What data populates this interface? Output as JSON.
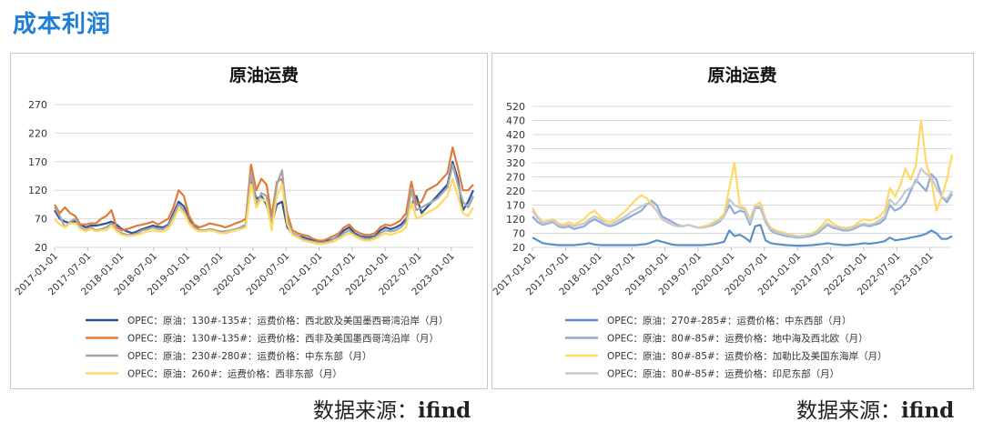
{
  "page": {
    "heading": "成本利润",
    "heading_color": "#1f7fd6",
    "source_label": "数据来源：",
    "source_value": "ifind"
  },
  "chart_data": [
    {
      "type": "line",
      "title": "原油运费",
      "xlabel": "",
      "ylabel": "",
      "y_ticks": [
        20,
        70,
        120,
        170,
        220,
        270
      ],
      "ylim": [
        20,
        270
      ],
      "grid": true,
      "legend_position": "bottom",
      "x_ticks": [
        "2017-01-01",
        "2017-07-01",
        "2018-01-01",
        "2018-07-01",
        "2019-01-01",
        "2019-07-01",
        "2020-01-01",
        "2020-07-01",
        "2021-01-01",
        "2021-07-01",
        "2022-01-01",
        "2022-07-01",
        "2023-01-01"
      ],
      "x_start": "2017-01",
      "x_end": "2023-05",
      "series": [
        {
          "name": "OPEC：原油：130#-135#：运费价格：西北欧及美国墨西哥湾沿岸（月）",
          "color": "#2f5597",
          "values": [
            85,
            70,
            65,
            62,
            66,
            60,
            55,
            58,
            58,
            60,
            62,
            65,
            60,
            52,
            48,
            45,
            48,
            52,
            55,
            58,
            56,
            55,
            60,
            80,
            100,
            92,
            70,
            58,
            50,
            48,
            52,
            50,
            48,
            45,
            48,
            50,
            55,
            60,
            140,
            105,
            110,
            95,
            60,
            95,
            100,
            55,
            45,
            40,
            38,
            35,
            32,
            30,
            30,
            32,
            35,
            40,
            50,
            55,
            45,
            40,
            38,
            38,
            40,
            50,
            55,
            52,
            55,
            60,
            70,
            95,
            110,
            80,
            90,
            100,
            110,
            120,
            130,
            170,
            140,
            85,
            100,
            120
          ]
        },
        {
          "name": "OPEC：原油：130#-135#：运费价格：西非及美国墨西哥湾沿岸（月）",
          "color": "#e07b39",
          "values": [
            95,
            80,
            90,
            80,
            75,
            60,
            60,
            62,
            62,
            70,
            75,
            85,
            55,
            50,
            52,
            55,
            58,
            60,
            62,
            65,
            60,
            65,
            70,
            90,
            120,
            110,
            75,
            60,
            55,
            58,
            62,
            60,
            58,
            55,
            58,
            62,
            65,
            70,
            165,
            120,
            140,
            130,
            75,
            135,
            140,
            80,
            50,
            45,
            42,
            40,
            35,
            32,
            32,
            36,
            40,
            45,
            55,
            60,
            50,
            45,
            42,
            42,
            45,
            55,
            60,
            58,
            62,
            68,
            80,
            135,
            95,
            100,
            120,
            125,
            130,
            140,
            150,
            195,
            160,
            120,
            120,
            130
          ]
        },
        {
          "name": "OPEC：原油：230#-280#：运费价格：中东东部（月）",
          "color": "#a6a6a6",
          "values": [
            90,
            75,
            55,
            65,
            70,
            55,
            50,
            55,
            50,
            52,
            55,
            62,
            50,
            45,
            42,
            42,
            45,
            50,
            52,
            55,
            52,
            52,
            58,
            75,
            95,
            85,
            65,
            55,
            50,
            50,
            52,
            50,
            48,
            48,
            50,
            52,
            55,
            60,
            150,
            95,
            115,
            110,
            60,
            130,
            155,
            70,
            45,
            40,
            35,
            32,
            30,
            28,
            28,
            30,
            35,
            38,
            45,
            50,
            42,
            38,
            35,
            35,
            38,
            45,
            50,
            48,
            50,
            55,
            65,
            120,
            85,
            90,
            95,
            100,
            105,
            115,
            125,
            165,
            130,
            100,
            90,
            110
          ]
        },
        {
          "name": "OPEC：原油：260#：运费价格：西非东部（月）",
          "color": "#ffd966",
          "values": [
            70,
            60,
            55,
            62,
            62,
            52,
            48,
            52,
            48,
            50,
            50,
            58,
            48,
            42,
            40,
            40,
            42,
            45,
            48,
            50,
            48,
            48,
            52,
            68,
            88,
            80,
            62,
            52,
            48,
            48,
            50,
            48,
            45,
            45,
            48,
            50,
            52,
            55,
            130,
            90,
            105,
            100,
            50,
            110,
            130,
            60,
            42,
            38,
            32,
            30,
            28,
            26,
            26,
            28,
            30,
            35,
            40,
            45,
            40,
            35,
            32,
            32,
            35,
            40,
            45,
            42,
            45,
            48,
            55,
            100,
            70,
            75,
            80,
            85,
            90,
            100,
            110,
            140,
            110,
            80,
            75,
            90
          ]
        }
      ]
    },
    {
      "type": "line",
      "title": "原油运费",
      "xlabel": "",
      "ylabel": "",
      "y_ticks": [
        20,
        70,
        120,
        170,
        220,
        270,
        320,
        370,
        420,
        470,
        520
      ],
      "ylim": [
        20,
        520
      ],
      "grid": true,
      "legend_position": "bottom",
      "x_ticks": [
        "2017-01-01",
        "2017-07-01",
        "2018-01-01",
        "2018-07-01",
        "2019-01-01",
        "2019-07-01",
        "2020-01-01",
        "2020-07-01",
        "2021-01-01",
        "2021-07-01",
        "2022-01-01",
        "2022-07-01",
        "2023-01-01"
      ],
      "x_start": "2017-01",
      "x_end": "2023-05",
      "series": [
        {
          "name": "OPEC：原油：270#-285#：运费价格：中东西部（月）",
          "color": "#5b8fc7",
          "values": [
            55,
            45,
            35,
            32,
            30,
            28,
            28,
            28,
            28,
            30,
            32,
            35,
            30,
            28,
            28,
            28,
            28,
            28,
            28,
            28,
            28,
            30,
            32,
            38,
            45,
            40,
            35,
            30,
            28,
            28,
            28,
            28,
            28,
            28,
            30,
            32,
            35,
            40,
            80,
            60,
            65,
            55,
            40,
            95,
            100,
            45,
            35,
            32,
            30,
            28,
            27,
            26,
            26,
            27,
            28,
            30,
            32,
            35,
            32,
            30,
            28,
            28,
            30,
            32,
            35,
            33,
            35,
            38,
            42,
            55,
            45,
            48,
            50,
            55,
            58,
            62,
            68,
            80,
            70,
            50,
            50,
            60
          ]
        },
        {
          "name": "OPEC：原油：80#-85#：运费价格：地中海及西北欧（月）",
          "color": "#8eaadb",
          "values": [
            130,
            110,
            100,
            105,
            110,
            95,
            90,
            95,
            85,
            90,
            95,
            110,
            120,
            110,
            100,
            95,
            100,
            110,
            120,
            130,
            140,
            150,
            170,
            185,
            170,
            130,
            120,
            110,
            100,
            95,
            100,
            95,
            90,
            90,
            95,
            100,
            110,
            130,
            170,
            140,
            150,
            145,
            100,
            160,
            160,
            110,
            80,
            70,
            65,
            60,
            58,
            55,
            55,
            58,
            62,
            70,
            85,
            100,
            90,
            85,
            80,
            80,
            85,
            95,
            100,
            95,
            100,
            105,
            120,
            170,
            150,
            160,
            180,
            220,
            260,
            240,
            220,
            280,
            260,
            200,
            180,
            210
          ]
        },
        {
          "name": "OPEC：原油：80#-85#：运费价格：加勒比及美国东海岸（月）",
          "color": "#ffd966",
          "values": [
            160,
            130,
            110,
            115,
            120,
            105,
            100,
            110,
            100,
            110,
            120,
            140,
            150,
            130,
            115,
            110,
            120,
            135,
            150,
            170,
            190,
            205,
            195,
            175,
            150,
            120,
            110,
            100,
            95,
            95,
            100,
            95,
            90,
            95,
            100,
            110,
            120,
            140,
            230,
            320,
            170,
            160,
            120,
            170,
            180,
            120,
            90,
            80,
            75,
            70,
            65,
            60,
            60,
            65,
            70,
            80,
            100,
            120,
            105,
            95,
            90,
            90,
            95,
            110,
            120,
            115,
            120,
            130,
            150,
            230,
            200,
            240,
            300,
            260,
            310,
            470,
            320,
            260,
            150,
            200,
            260,
            350
          ]
        },
        {
          "name": "OPEC：原油：80#-85#：运费价格：印尼东部（月）",
          "color": "#c9c9c9",
          "values": [
            150,
            125,
            105,
            110,
            115,
            100,
            95,
            100,
            95,
            100,
            105,
            120,
            130,
            120,
            105,
            100,
            110,
            120,
            130,
            145,
            155,
            165,
            175,
            170,
            150,
            120,
            110,
            100,
            95,
            95,
            100,
            95,
            90,
            90,
            95,
            105,
            115,
            130,
            190,
            170,
            160,
            155,
            110,
            165,
            165,
            115,
            85,
            75,
            70,
            65,
            62,
            58,
            58,
            62,
            66,
            75,
            90,
            105,
            95,
            90,
            85,
            85,
            90,
            100,
            105,
            100,
            105,
            115,
            130,
            190,
            170,
            190,
            220,
            230,
            250,
            300,
            280,
            270,
            230,
            200,
            190,
            220
          ]
        }
      ]
    }
  ]
}
